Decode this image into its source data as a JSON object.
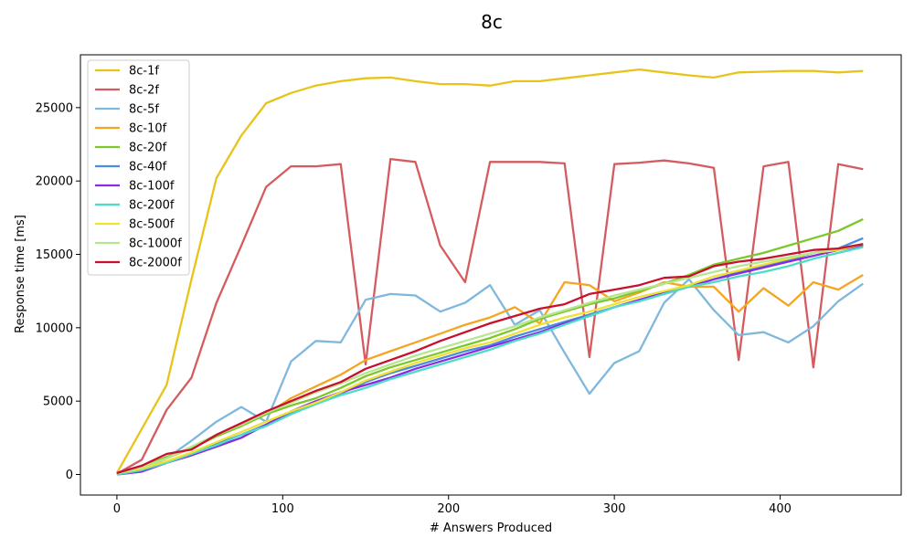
{
  "chart_data": {
    "type": "line",
    "title": "8c",
    "xlabel": "# Answers Produced",
    "ylabel": "Response time [ms]",
    "xlim": [
      -22,
      473
    ],
    "ylim": [
      -1400,
      28600
    ],
    "xticks": [
      0,
      100,
      200,
      300,
      400
    ],
    "yticks": [
      0,
      5000,
      10000,
      15000,
      20000,
      25000
    ],
    "grid": false,
    "legend_position": "top-left",
    "x": [
      0,
      15,
      30,
      45,
      60,
      75,
      90,
      105,
      120,
      135,
      150,
      165,
      180,
      195,
      210,
      225,
      240,
      255,
      270,
      285,
      300,
      315,
      330,
      345,
      360,
      375,
      390,
      405,
      420,
      435,
      450
    ],
    "series": [
      {
        "name": "8c-1f",
        "color": "#e8c41b",
        "values": [
          100,
          3100,
          6100,
          13300,
          20200,
          23100,
          25300,
          26000,
          26500,
          26800,
          27000,
          27050,
          26800,
          26600,
          26600,
          26500,
          26800,
          26800,
          27000,
          27200,
          27400,
          27600,
          27400,
          27200,
          27050,
          27400,
          27450,
          27500,
          27500,
          27400,
          27500
        ]
      },
      {
        "name": "8c-2f",
        "color": "#d45c5f",
        "values": [
          50,
          1000,
          4400,
          6600,
          11700,
          15600,
          19600,
          21000,
          21000,
          21150,
          7500,
          21500,
          21300,
          15600,
          13100,
          21300,
          21300,
          21300,
          21200,
          8000,
          21150,
          21250,
          21400,
          21200,
          20900,
          7800,
          21000,
          21300,
          7300,
          21150,
          20800
        ]
      },
      {
        "name": "8c-5f",
        "color": "#7fb8dc",
        "values": [
          100,
          400,
          1100,
          2300,
          3600,
          4600,
          3600,
          7700,
          9100,
          9000,
          11900,
          12300,
          12200,
          11100,
          11700,
          12900,
          10200,
          11200,
          8300,
          5500,
          7600,
          8400,
          11700,
          13300,
          11200,
          9500,
          9700,
          9000,
          10100,
          11800,
          13000
        ]
      },
      {
        "name": "8c-10f",
        "color": "#f4a521",
        "values": [
          100,
          500,
          1100,
          1800,
          2600,
          3300,
          4100,
          5200,
          6000,
          6800,
          7800,
          8400,
          9000,
          9600,
          10200,
          10700,
          11400,
          10300,
          13100,
          12900,
          11800,
          12400,
          13100,
          12800,
          12800,
          11100,
          12700,
          11500,
          13100,
          12600,
          13600
        ]
      },
      {
        "name": "8c-20f",
        "color": "#7cc82b",
        "values": [
          100,
          500,
          1200,
          1800,
          2600,
          3300,
          4100,
          4700,
          5200,
          5900,
          6700,
          7300,
          7800,
          8300,
          8800,
          9300,
          9900,
          10600,
          11100,
          11600,
          12000,
          12500,
          13000,
          13600,
          14300,
          14700,
          15100,
          15600,
          16100,
          16600,
          17400
        ]
      },
      {
        "name": "8c-40f",
        "color": "#4a8de0",
        "values": [
          0,
          200,
          800,
          1400,
          2100,
          2700,
          3400,
          4200,
          4800,
          5500,
          6300,
          6900,
          7400,
          7900,
          8400,
          8800,
          9400,
          9900,
          10400,
          10900,
          11400,
          11900,
          12300,
          12800,
          13300,
          13800,
          14200,
          14600,
          15100,
          15400,
          16100
        ]
      },
      {
        "name": "8c-100f",
        "color": "#8a2be2",
        "values": [
          0,
          200,
          800,
          1300,
          1900,
          2500,
          3400,
          4300,
          5000,
          5600,
          6100,
          6600,
          7200,
          7700,
          8200,
          8700,
          9200,
          9700,
          10300,
          10800,
          11400,
          11900,
          12400,
          12800,
          13300,
          13700,
          14100,
          14500,
          14900,
          15300,
          15600
        ]
      },
      {
        "name": "8c-200f",
        "color": "#4ddcc5",
        "values": [
          0,
          300,
          800,
          1400,
          2000,
          2700,
          3300,
          4100,
          4800,
          5400,
          5900,
          6500,
          7000,
          7500,
          8000,
          8500,
          9100,
          9600,
          10200,
          10800,
          11400,
          11800,
          12300,
          12800,
          13100,
          13500,
          13800,
          14200,
          14700,
          15100,
          15500
        ]
      },
      {
        "name": "8c-500f",
        "color": "#f0e230",
        "values": [
          100,
          400,
          900,
          1500,
          2200,
          2900,
          3600,
          4300,
          4900,
          5600,
          6400,
          7000,
          7600,
          8100,
          8600,
          9000,
          9600,
          10200,
          10700,
          11100,
          11600,
          12100,
          12500,
          12900,
          13500,
          13900,
          14300,
          14700,
          15100,
          15300,
          15700
        ]
      },
      {
        "name": "8c-1000f",
        "color": "#b7e690",
        "values": [
          100,
          500,
          1100,
          1900,
          2700,
          3400,
          4200,
          4900,
          5600,
          6200,
          6900,
          7500,
          8100,
          8600,
          9100,
          9600,
          10100,
          10700,
          11200,
          11700,
          12200,
          12600,
          13000,
          13400,
          13800,
          14200,
          14500,
          14800,
          15100,
          15400,
          15700
        ]
      },
      {
        "name": "8c-2000f",
        "color": "#c8102e",
        "values": [
          100,
          600,
          1400,
          1700,
          2700,
          3500,
          4300,
          5000,
          5700,
          6300,
          7200,
          7800,
          8400,
          9100,
          9700,
          10300,
          10800,
          11300,
          11600,
          12300,
          12600,
          12900,
          13400,
          13500,
          14200,
          14500,
          14700,
          15000,
          15300,
          15400,
          15700
        ]
      }
    ]
  }
}
